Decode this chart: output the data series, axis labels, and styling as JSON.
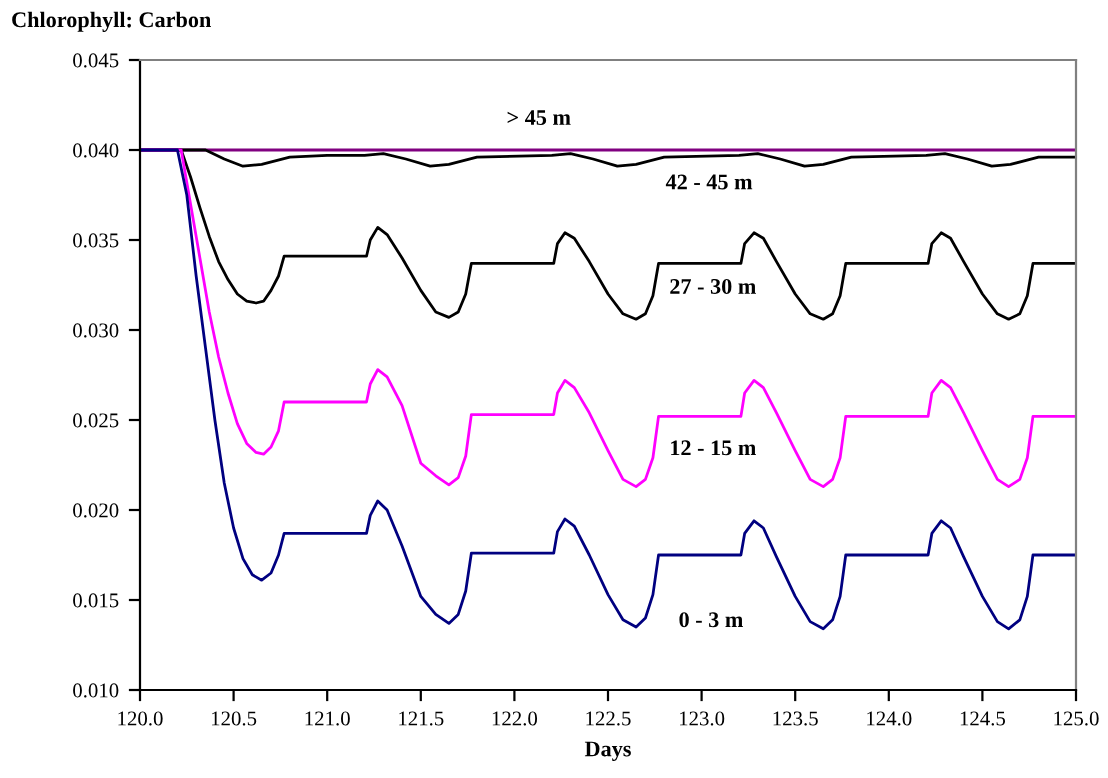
{
  "chart_data": {
    "type": "line",
    "title": "Chlorophyll: Carbon",
    "xlabel": "Days",
    "xlim": [
      120,
      125
    ],
    "ylim": [
      0.01,
      0.045
    ],
    "xticks": [
      {
        "value": 120,
        "label": "120.0"
      },
      {
        "value": 120.5,
        "label": "120.5"
      },
      {
        "value": 121,
        "label": "121.0"
      },
      {
        "value": 121.5,
        "label": "121.5"
      },
      {
        "value": 122,
        "label": "122.0"
      },
      {
        "value": 122.5,
        "label": "122.5"
      },
      {
        "value": 123,
        "label": "123.0"
      },
      {
        "value": 123.5,
        "label": "123.5"
      },
      {
        "value": 124,
        "label": "124.0"
      },
      {
        "value": 124.5,
        "label": "124.5"
      },
      {
        "value": 125,
        "label": "125.0"
      }
    ],
    "yticks": [
      {
        "value": 0.01,
        "label": "0.010"
      },
      {
        "value": 0.015,
        "label": "0.015"
      },
      {
        "value": 0.02,
        "label": "0.020"
      },
      {
        "value": 0.025,
        "label": "0.025"
      },
      {
        "value": 0.03,
        "label": "0.030"
      },
      {
        "value": 0.035,
        "label": "0.035"
      },
      {
        "value": 0.04,
        "label": "0.040"
      },
      {
        "value": 0.045,
        "label": "0.045"
      }
    ],
    "grid": false,
    "marker": "none",
    "line_style": "solid",
    "series": [
      {
        "name": "> 45 m",
        "color": "#800080",
        "x": [
          120,
          125
        ],
        "values": [
          0.04,
          0.04
        ]
      },
      {
        "name": "42 - 45 m",
        "color": "#000000",
        "x": [
          120,
          120.35,
          120.45,
          120.55,
          120.65,
          120.8,
          121.0,
          121.2,
          121.3,
          121.42,
          121.55,
          121.65,
          121.8,
          122.2,
          122.3,
          122.42,
          122.55,
          122.65,
          122.8,
          123.2,
          123.3,
          123.42,
          123.55,
          123.65,
          123.8,
          124.2,
          124.3,
          124.42,
          124.55,
          124.65,
          124.8,
          125.0
        ],
        "values": [
          0.04,
          0.04,
          0.0395,
          0.0391,
          0.0392,
          0.0396,
          0.0397,
          0.0397,
          0.0398,
          0.0395,
          0.0391,
          0.0392,
          0.0396,
          0.0397,
          0.0398,
          0.0395,
          0.0391,
          0.0392,
          0.0396,
          0.0397,
          0.0398,
          0.0395,
          0.0391,
          0.0392,
          0.0396,
          0.0397,
          0.0398,
          0.0395,
          0.0391,
          0.0392,
          0.0396,
          0.0396
        ]
      },
      {
        "name": "27 - 30 m",
        "color": "#000000",
        "x": [
          120,
          120.22,
          120.27,
          120.32,
          120.37,
          120.42,
          120.47,
          120.52,
          120.57,
          120.62,
          120.66,
          120.7,
          120.74,
          120.77,
          121.21,
          121.23,
          121.27,
          121.32,
          121.4,
          121.5,
          121.58,
          121.65,
          121.7,
          121.74,
          121.77,
          122.21,
          122.23,
          122.27,
          122.32,
          122.4,
          122.5,
          122.58,
          122.65,
          122.7,
          122.74,
          122.77,
          123.21,
          123.23,
          123.28,
          123.33,
          123.4,
          123.5,
          123.58,
          123.65,
          123.7,
          123.74,
          123.77,
          124.21,
          124.23,
          124.28,
          124.33,
          124.4,
          124.5,
          124.58,
          124.64,
          124.7,
          124.74,
          124.77,
          125.0
        ],
        "values": [
          0.04,
          0.04,
          0.0385,
          0.0368,
          0.0352,
          0.0338,
          0.0328,
          0.032,
          0.0316,
          0.0315,
          0.0316,
          0.0322,
          0.033,
          0.0341,
          0.0341,
          0.035,
          0.0357,
          0.0353,
          0.034,
          0.0322,
          0.031,
          0.0307,
          0.031,
          0.032,
          0.0337,
          0.0337,
          0.0348,
          0.0354,
          0.0351,
          0.0338,
          0.032,
          0.0309,
          0.0306,
          0.0309,
          0.0319,
          0.0337,
          0.0337,
          0.0348,
          0.0354,
          0.0351,
          0.0338,
          0.032,
          0.0309,
          0.0306,
          0.0309,
          0.0319,
          0.0337,
          0.0337,
          0.0348,
          0.0354,
          0.0351,
          0.0338,
          0.032,
          0.0309,
          0.0306,
          0.0309,
          0.0319,
          0.0337,
          0.0337
        ]
      },
      {
        "name": "12 - 15 m",
        "color": "#ff00ff",
        "x": [
          120,
          120.22,
          120.27,
          120.32,
          120.37,
          120.42,
          120.47,
          120.52,
          120.57,
          120.62,
          120.66,
          120.7,
          120.74,
          120.77,
          121.21,
          121.23,
          121.27,
          121.32,
          121.4,
          121.5,
          121.58,
          121.65,
          121.7,
          121.74,
          121.77,
          122.21,
          122.23,
          122.27,
          122.32,
          122.4,
          122.5,
          122.58,
          122.65,
          122.7,
          122.74,
          122.77,
          123.21,
          123.23,
          123.28,
          123.33,
          123.4,
          123.5,
          123.58,
          123.65,
          123.7,
          123.74,
          123.77,
          124.21,
          124.23,
          124.28,
          124.33,
          124.4,
          124.5,
          124.58,
          124.64,
          124.7,
          124.74,
          124.77,
          125.0
        ],
        "values": [
          0.04,
          0.04,
          0.037,
          0.034,
          0.031,
          0.0285,
          0.0265,
          0.0248,
          0.0237,
          0.0232,
          0.0231,
          0.0235,
          0.0244,
          0.026,
          0.026,
          0.027,
          0.0278,
          0.0274,
          0.0258,
          0.0226,
          0.0219,
          0.0214,
          0.0218,
          0.023,
          0.0253,
          0.0253,
          0.0265,
          0.0272,
          0.0268,
          0.0254,
          0.0233,
          0.0217,
          0.0213,
          0.0217,
          0.0229,
          0.0252,
          0.0252,
          0.0265,
          0.0272,
          0.0268,
          0.0254,
          0.0233,
          0.0217,
          0.0213,
          0.0217,
          0.0229,
          0.0252,
          0.0252,
          0.0265,
          0.0272,
          0.0268,
          0.0254,
          0.0233,
          0.0217,
          0.0213,
          0.0217,
          0.0229,
          0.0252,
          0.0252
        ]
      },
      {
        "name": "0 - 3 m",
        "color": "#000080",
        "x": [
          120,
          120.2,
          120.25,
          120.3,
          120.35,
          120.4,
          120.45,
          120.5,
          120.55,
          120.6,
          120.65,
          120.7,
          120.74,
          120.77,
          121.21,
          121.23,
          121.27,
          121.32,
          121.4,
          121.5,
          121.58,
          121.65,
          121.7,
          121.74,
          121.77,
          122.21,
          122.23,
          122.27,
          122.32,
          122.4,
          122.5,
          122.58,
          122.65,
          122.7,
          122.74,
          122.77,
          123.21,
          123.23,
          123.28,
          123.33,
          123.4,
          123.5,
          123.58,
          123.65,
          123.7,
          123.74,
          123.77,
          124.21,
          124.23,
          124.28,
          124.33,
          124.4,
          124.5,
          124.58,
          124.64,
          124.7,
          124.74,
          124.77,
          125.0
        ],
        "values": [
          0.04,
          0.04,
          0.0375,
          0.033,
          0.029,
          0.025,
          0.0215,
          0.019,
          0.0173,
          0.0164,
          0.0161,
          0.0165,
          0.0175,
          0.0187,
          0.0187,
          0.0197,
          0.0205,
          0.02,
          0.018,
          0.0152,
          0.0142,
          0.0137,
          0.0142,
          0.0155,
          0.0176,
          0.0176,
          0.0188,
          0.0195,
          0.0191,
          0.0175,
          0.0153,
          0.0139,
          0.0135,
          0.014,
          0.0153,
          0.0175,
          0.0175,
          0.0187,
          0.0194,
          0.019,
          0.0174,
          0.0152,
          0.0138,
          0.0134,
          0.0139,
          0.0152,
          0.0175,
          0.0175,
          0.0187,
          0.0194,
          0.019,
          0.0174,
          0.0152,
          0.0138,
          0.0134,
          0.0139,
          0.0152,
          0.0175,
          0.0175
        ]
      }
    ]
  }
}
